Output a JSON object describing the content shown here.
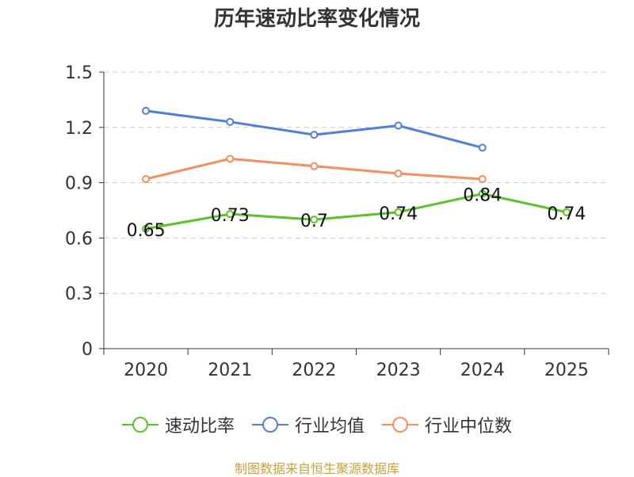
{
  "chart_data": {
    "type": "line",
    "title": "历年速动比率变化情况",
    "categories": [
      "2020",
      "2021",
      "2022",
      "2023",
      "2024",
      "2025"
    ],
    "ylim": [
      0,
      1.5
    ],
    "yticks": [
      0,
      0.3,
      0.6,
      0.9,
      1.2,
      1.5
    ],
    "ytick_labels": [
      "0",
      "0.3",
      "0.6",
      "0.9",
      "1.2",
      "1.5"
    ],
    "grid": true,
    "legend_position": "bottom",
    "series": [
      {
        "name": "速动比率",
        "color": "#5cc22a",
        "values": [
          0.65,
          0.73,
          0.7,
          0.74,
          0.84,
          0.74
        ],
        "labels": [
          "0.65",
          "0.73",
          "0.7",
          "0.74",
          "0.84",
          "0.74"
        ]
      },
      {
        "name": "行业均值",
        "color": "#4f7fdc",
        "values": [
          1.29,
          1.23,
          1.16,
          1.21,
          1.09,
          null
        ]
      },
      {
        "name": "行业中位数",
        "color": "#f58f5c",
        "values": [
          0.92,
          1.03,
          0.99,
          0.95,
          0.92,
          null
        ]
      }
    ]
  },
  "footer": {
    "source": "制图数据来自恒生聚源数据库"
  }
}
